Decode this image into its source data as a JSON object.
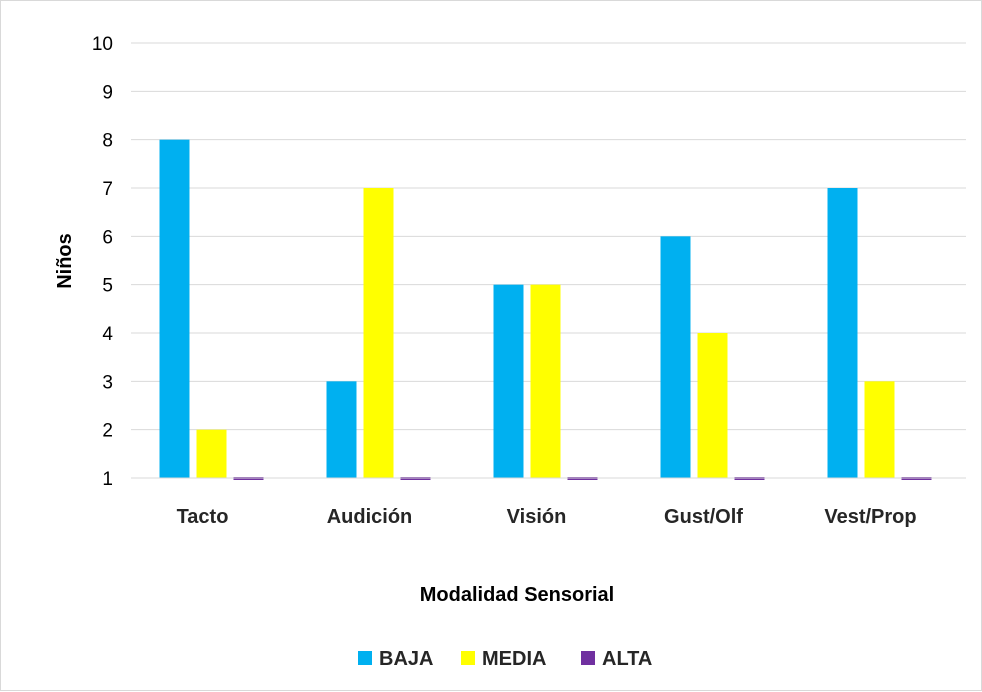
{
  "chart_data": {
    "type": "bar",
    "categories": [
      "Tacto",
      "Audición",
      "Visión",
      "Gust/Olf",
      "Vest/Prop"
    ],
    "series": [
      {
        "name": "BAJA",
        "values": [
          8,
          3,
          5,
          6,
          7
        ],
        "color": "#00b0f0"
      },
      {
        "name": "MEDIA",
        "values": [
          2,
          7,
          5,
          4,
          3
        ],
        "color": "#ffff00"
      },
      {
        "name": "ALTA",
        "values": [
          1,
          1,
          1,
          1,
          1
        ],
        "color": "#7030a0"
      }
    ],
    "xlabel": "Modalidad Sensorial",
    "ylabel": "Niños",
    "ylim": [
      1,
      10
    ],
    "yticks": [
      1,
      2,
      3,
      4,
      5,
      6,
      7,
      8,
      9,
      10
    ],
    "grid": true,
    "legend_position": "bottom"
  }
}
